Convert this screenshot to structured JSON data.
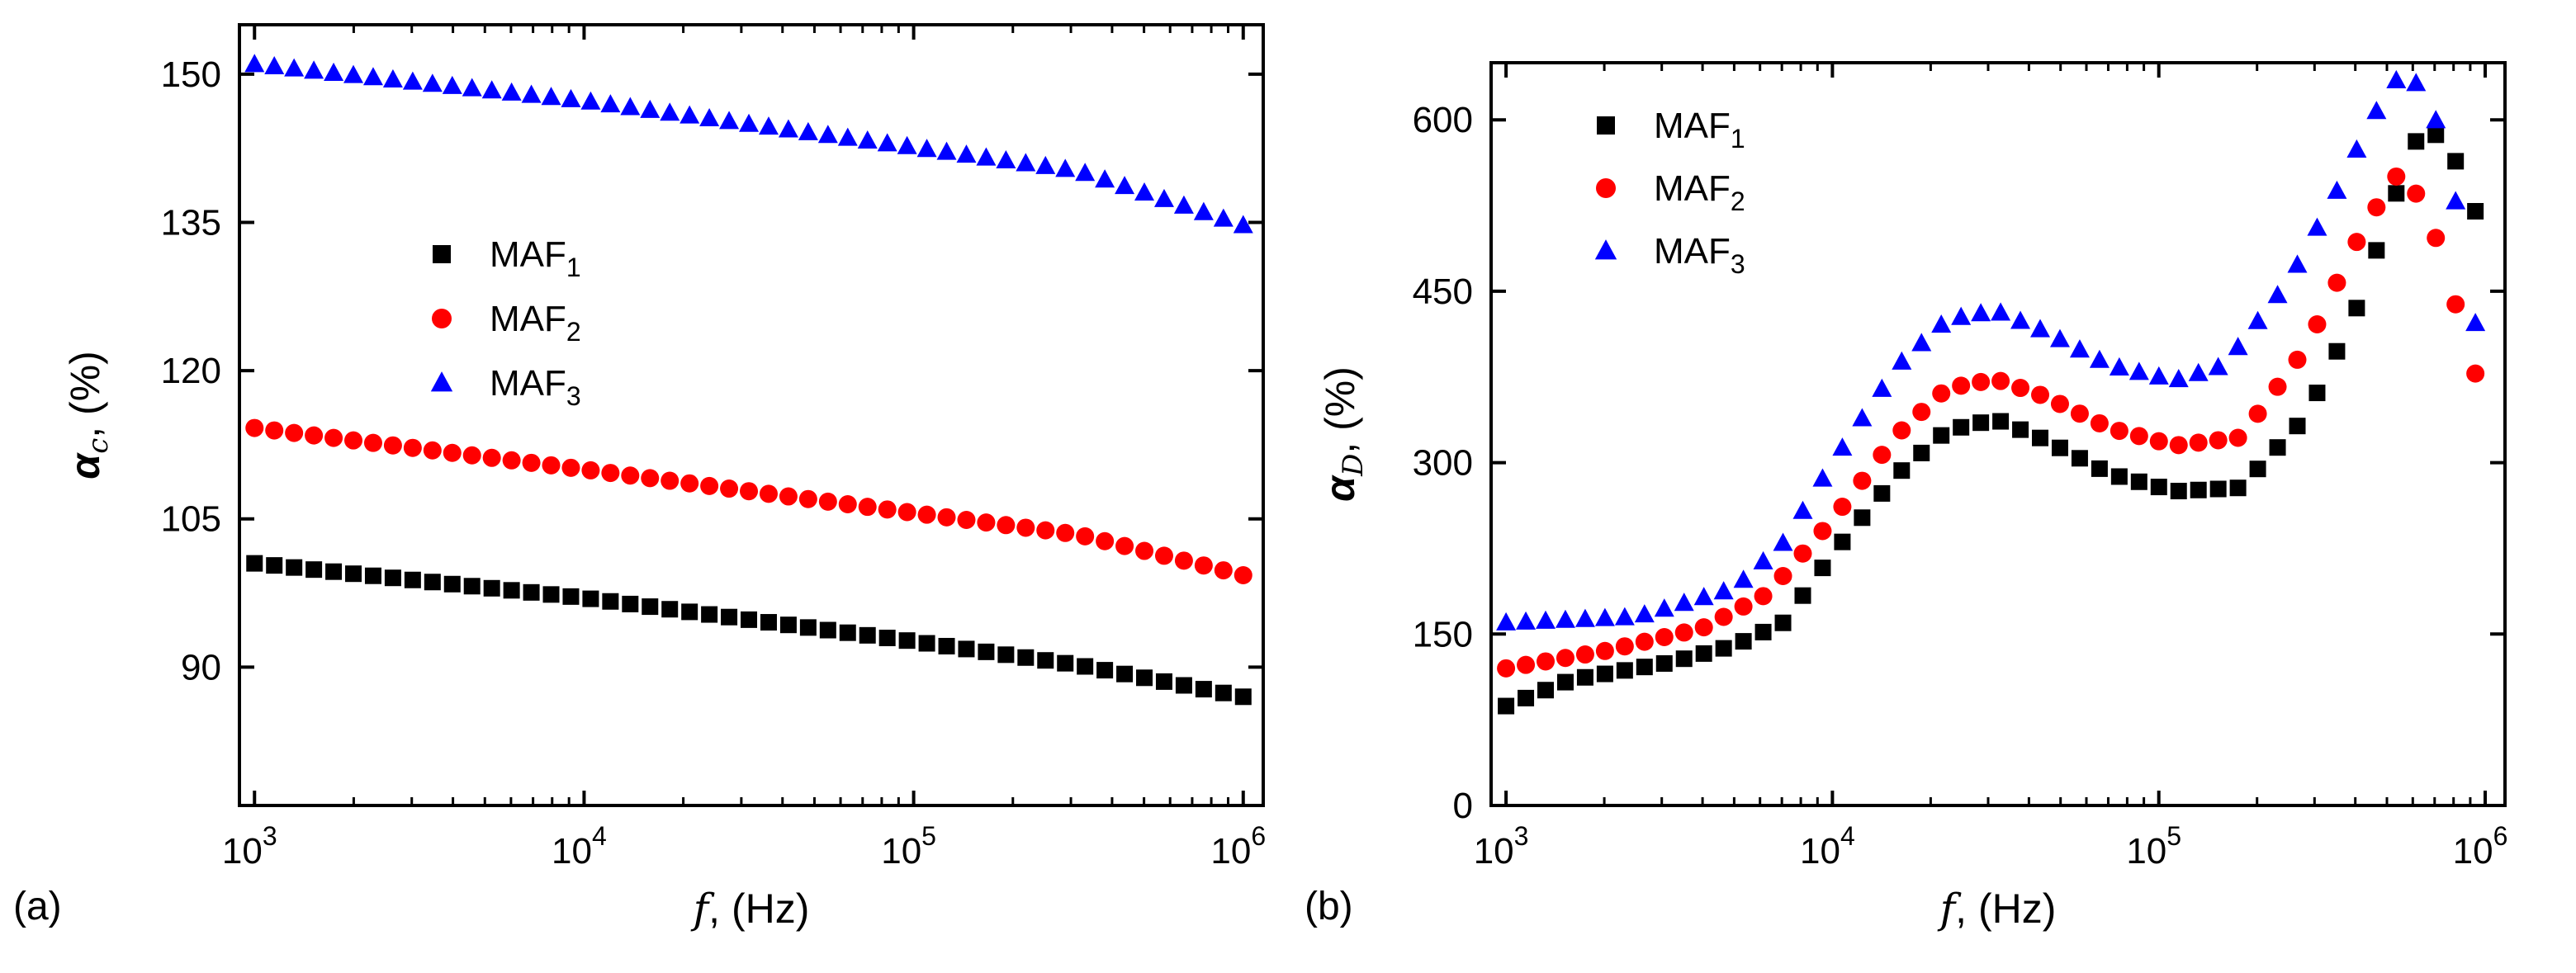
{
  "chart_data": [
    {
      "type": "scatter",
      "panel_label": "(a)",
      "xlabel": {
        "symbol": "f",
        "unit": ", (Hz)"
      },
      "ylabel": {
        "symbol": "α",
        "sub": "c",
        "unit": ", (%)"
      },
      "xscale": "log",
      "xlim": [
        900,
        1150000
      ],
      "ylim": [
        76,
        155
      ],
      "xticks": [
        {
          "value": 1000,
          "base": "10",
          "exp": "3"
        },
        {
          "value": 10000,
          "base": "10",
          "exp": "4"
        },
        {
          "value": 100000,
          "base": "10",
          "exp": "5"
        },
        {
          "value": 1000000,
          "base": "10",
          "exp": "6"
        }
      ],
      "yticks": [
        90,
        105,
        120,
        135,
        150
      ],
      "legend_position": "center-left",
      "series": [
        {
          "name": "MAF",
          "sub": "1",
          "marker": "square",
          "color": "#000000",
          "x_log_range": [
            3,
            6
          ],
          "points": 51,
          "y_anchors": [
            [
              3,
              100.5
            ],
            [
              4,
              97
            ],
            [
              5,
              92.6
            ],
            [
              5.5,
              90.2
            ],
            [
              6,
              87
            ]
          ]
        },
        {
          "name": "MAF",
          "sub": "2",
          "marker": "circle",
          "color": "#ff0000",
          "x_log_range": [
            3,
            6
          ],
          "points": 51,
          "y_anchors": [
            [
              3,
              114.2
            ],
            [
              4,
              110
            ],
            [
              5,
              105.6
            ],
            [
              5.5,
              103.4
            ],
            [
              6,
              99.3
            ]
          ]
        },
        {
          "name": "MAF",
          "sub": "3",
          "marker": "triangle",
          "color": "#0000ff",
          "x_log_range": [
            3,
            6
          ],
          "points": 51,
          "y_anchors": [
            [
              3,
              151
            ],
            [
              4,
              147.3
            ],
            [
              5,
              142.6
            ],
            [
              5.5,
              140.2
            ],
            [
              6,
              134.7
            ]
          ]
        }
      ]
    },
    {
      "type": "scatter",
      "panel_label": "(b)",
      "xlabel": {
        "symbol": "f",
        "unit": ", (Hz)"
      },
      "ylabel": {
        "symbol": "α",
        "sub": "D",
        "unit": ", (%)"
      },
      "xscale": "log",
      "xlim": [
        900,
        1150000
      ],
      "ylim": [
        0,
        650
      ],
      "xticks": [
        {
          "value": 1000,
          "base": "10",
          "exp": "3"
        },
        {
          "value": 10000,
          "base": "10",
          "exp": "4"
        },
        {
          "value": 100000,
          "base": "10",
          "exp": "5"
        },
        {
          "value": 1000000,
          "base": "10",
          "exp": "6"
        }
      ],
      "yticks": [
        0,
        150,
        300,
        450,
        600
      ],
      "legend_position": "top-left",
      "series": [
        {
          "name": "MAF",
          "sub": "1",
          "marker": "square",
          "color": "#000000",
          "x_log_range": [
            3,
            5.97
          ],
          "points": 50,
          "y_anchors": [
            [
              3,
              87
            ],
            [
              3.2,
              110
            ],
            [
              3.5,
              125
            ],
            [
              3.7,
              140
            ],
            [
              3.85,
              160
            ],
            [
              4,
              220
            ],
            [
              4.2,
              290
            ],
            [
              4.35,
              328
            ],
            [
              4.5,
              338
            ],
            [
              4.65,
              320
            ],
            [
              4.85,
              290
            ],
            [
              5.05,
              275
            ],
            [
              5.25,
              278
            ],
            [
              5.45,
              340
            ],
            [
              5.6,
              430
            ],
            [
              5.72,
              530
            ],
            [
              5.8,
              590
            ],
            [
              5.88,
              585
            ],
            [
              5.97,
              520
            ]
          ]
        },
        {
          "name": "MAF",
          "sub": "2",
          "marker": "circle",
          "color": "#ff0000",
          "x_log_range": [
            3,
            5.97
          ],
          "points": 50,
          "y_anchors": [
            [
              3,
              120
            ],
            [
              3.3,
              135
            ],
            [
              3.6,
              155
            ],
            [
              3.8,
              185
            ],
            [
              4,
              250
            ],
            [
              4.2,
              325
            ],
            [
              4.35,
              365
            ],
            [
              4.5,
              373
            ],
            [
              4.65,
              358
            ],
            [
              4.85,
              330
            ],
            [
              5.05,
              315
            ],
            [
              5.25,
              322
            ],
            [
              5.45,
              400
            ],
            [
              5.6,
              490
            ],
            [
              5.72,
              550
            ],
            [
              5.76,
              552
            ],
            [
              5.84,
              505
            ],
            [
              5.9,
              448
            ],
            [
              5.97,
              378
            ]
          ]
        },
        {
          "name": "MAF",
          "sub": "3",
          "marker": "triangle",
          "color": "#0000ff",
          "x_log_range": [
            3,
            5.97
          ],
          "points": 50,
          "y_anchors": [
            [
              3,
              160
            ],
            [
              3.4,
              165
            ],
            [
              3.7,
              190
            ],
            [
              3.85,
              230
            ],
            [
              4,
              300
            ],
            [
              4.2,
              385
            ],
            [
              4.35,
              425
            ],
            [
              4.5,
              433
            ],
            [
              4.65,
              415
            ],
            [
              4.85,
              385
            ],
            [
              5.05,
              372
            ],
            [
              5.2,
              385
            ],
            [
              5.4,
              460
            ],
            [
              5.55,
              540
            ],
            [
              5.65,
              600
            ],
            [
              5.74,
              640
            ],
            [
              5.8,
              630
            ],
            [
              5.88,
              580
            ],
            [
              5.92,
              510
            ],
            [
              5.97,
              422
            ]
          ]
        }
      ]
    }
  ]
}
